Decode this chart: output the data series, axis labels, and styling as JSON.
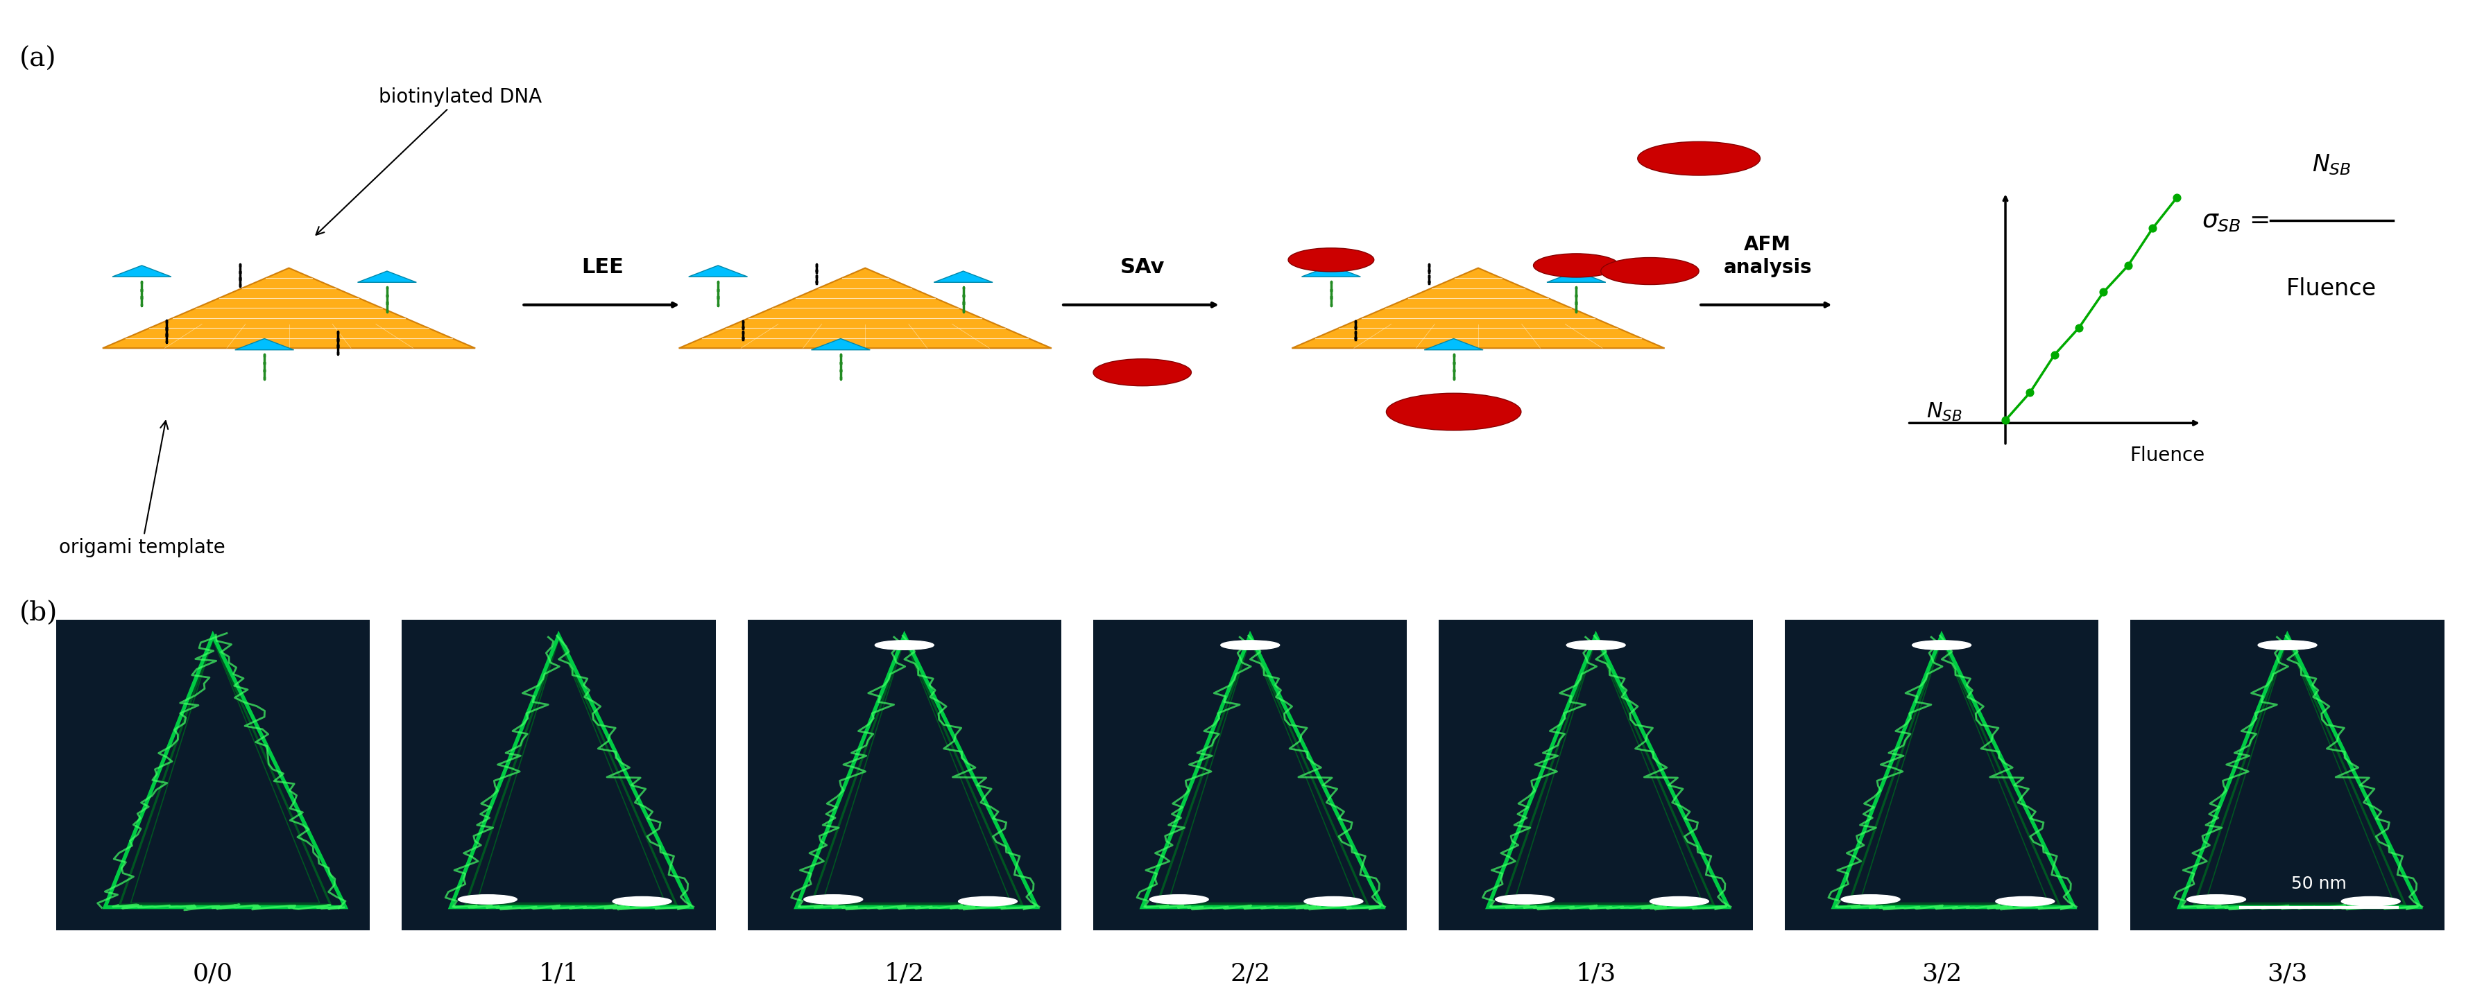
{
  "panel_a_label": "(a)",
  "panel_b_label": "(b)",
  "panel_b_sublabels": [
    "0/0",
    "1/1",
    "1/2",
    "2/2",
    "1/3",
    "3/2",
    "3/3"
  ],
  "scale_bar_text": "50 nm",
  "annotation_biotinylated": "biotinylated DNA",
  "annotation_origami": "origami template",
  "arrow1_label": "LEE",
  "arrow2_label": "SAv",
  "arrow3_label": "AFM\nanalysis",
  "graph_xlabel": "Fluence",
  "graph_ylabel": "Nₛв",
  "formula": "σₛв = ",
  "formula_num": "Nₛв",
  "formula_den": "Fluence",
  "bg_color": "#ffffff",
  "orange_color": "#FFA500",
  "green_color": "#228B22",
  "cyan_color": "#00BFFF",
  "red_color": "#CC0000",
  "black_color": "#000000",
  "graph_line_color": "#00AA00",
  "text_fontsize": 22,
  "label_fontsize": 28,
  "sublabel_fontsize": 26
}
